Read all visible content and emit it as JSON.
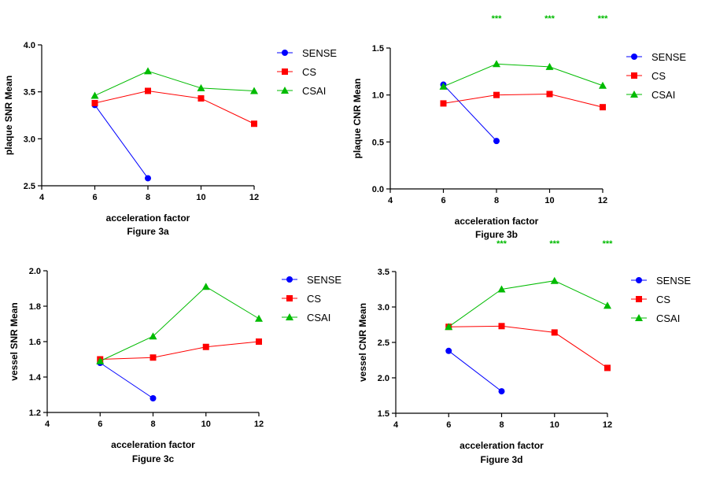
{
  "colors": {
    "SENSE": "#0000ff",
    "CS": "#ff0000",
    "CSAI": "#00bb00",
    "sig": "#00bb00"
  },
  "chart_data": [
    {
      "type": "line",
      "title": "",
      "caption": "Figure 3a",
      "xlabel": "acceleration factor",
      "ylabel": "plaque SNR Mean",
      "xlim": [
        4,
        12
      ],
      "ylim": [
        2.5,
        4.0
      ],
      "xticks": [
        "4",
        "6",
        "8",
        "10",
        "12"
      ],
      "yticks": [
        "2.5",
        "3.0",
        "3.5",
        "4.0"
      ],
      "series": [
        {
          "name": "SENSE",
          "marker": "circle",
          "x": [
            6,
            8
          ],
          "values": [
            3.36,
            2.58
          ]
        },
        {
          "name": "CS",
          "marker": "square",
          "x": [
            6,
            8,
            10,
            12
          ],
          "values": [
            3.38,
            3.51,
            3.43,
            3.16
          ]
        },
        {
          "name": "CSAI",
          "marker": "triangle",
          "x": [
            6,
            8,
            10,
            12
          ],
          "values": [
            3.46,
            3.72,
            3.54,
            3.51
          ]
        }
      ],
      "significance": []
    },
    {
      "type": "line",
      "title": "",
      "caption": "Figure 3b",
      "xlabel": "acceleration factor",
      "ylabel": "plaque CNR Mean",
      "xlim": [
        4,
        12
      ],
      "ylim": [
        0.0,
        1.5
      ],
      "xticks": [
        "4",
        "6",
        "8",
        "10",
        "12"
      ],
      "yticks": [
        "0.0",
        "0.5",
        "1.0",
        "1.5"
      ],
      "series": [
        {
          "name": "SENSE",
          "marker": "circle",
          "x": [
            6,
            8
          ],
          "values": [
            1.11,
            0.51
          ]
        },
        {
          "name": "CS",
          "marker": "square",
          "x": [
            6,
            8,
            10,
            12
          ],
          "values": [
            0.91,
            1.0,
            1.01,
            0.87
          ]
        },
        {
          "name": "CSAI",
          "marker": "triangle",
          "x": [
            6,
            8,
            10,
            12
          ],
          "values": [
            1.09,
            1.33,
            1.3,
            1.1
          ]
        }
      ],
      "significance": [
        {
          "x": 8,
          "label": "***"
        },
        {
          "x": 10,
          "label": "***"
        },
        {
          "x": 12,
          "label": "***"
        }
      ]
    },
    {
      "type": "line",
      "title": "",
      "caption": "Figure 3c",
      "xlabel": "acceleration factor",
      "ylabel": "vessel SNR Mean",
      "xlim": [
        4,
        12
      ],
      "ylim": [
        1.2,
        2.0
      ],
      "xticks": [
        "4",
        "6",
        "8",
        "10",
        "12"
      ],
      "yticks": [
        "1.2",
        "1.4",
        "1.6",
        "1.8",
        "2.0"
      ],
      "series": [
        {
          "name": "SENSE",
          "marker": "circle",
          "x": [
            6,
            8
          ],
          "values": [
            1.48,
            1.28
          ]
        },
        {
          "name": "CS",
          "marker": "square",
          "x": [
            6,
            8,
            10,
            12
          ],
          "values": [
            1.5,
            1.51,
            1.57,
            1.6
          ]
        },
        {
          "name": "CSAI",
          "marker": "triangle",
          "x": [
            6,
            8,
            10,
            12
          ],
          "values": [
            1.49,
            1.63,
            1.91,
            1.73
          ]
        }
      ],
      "significance": []
    },
    {
      "type": "line",
      "title": "",
      "caption": "Figure 3d",
      "xlabel": "acceleration factor",
      "ylabel": "vessel CNR Mean",
      "xlim": [
        4,
        12
      ],
      "ylim": [
        1.5,
        3.5
      ],
      "xticks": [
        "4",
        "6",
        "8",
        "10",
        "12"
      ],
      "yticks": [
        "1.5",
        "2.0",
        "2.5",
        "3.0",
        "3.5"
      ],
      "series": [
        {
          "name": "SENSE",
          "marker": "circle",
          "x": [
            6,
            8
          ],
          "values": [
            2.38,
            1.81
          ]
        },
        {
          "name": "CS",
          "marker": "square",
          "x": [
            6,
            8,
            10,
            12
          ],
          "values": [
            2.72,
            2.73,
            2.64,
            2.14
          ]
        },
        {
          "name": "CSAI",
          "marker": "triangle",
          "x": [
            6,
            8,
            10,
            12
          ],
          "values": [
            2.72,
            3.25,
            3.37,
            3.02
          ]
        }
      ],
      "significance": [
        {
          "x": 8,
          "label": "***"
        },
        {
          "x": 10,
          "label": "***"
        },
        {
          "x": 12,
          "label": "***"
        }
      ]
    }
  ]
}
